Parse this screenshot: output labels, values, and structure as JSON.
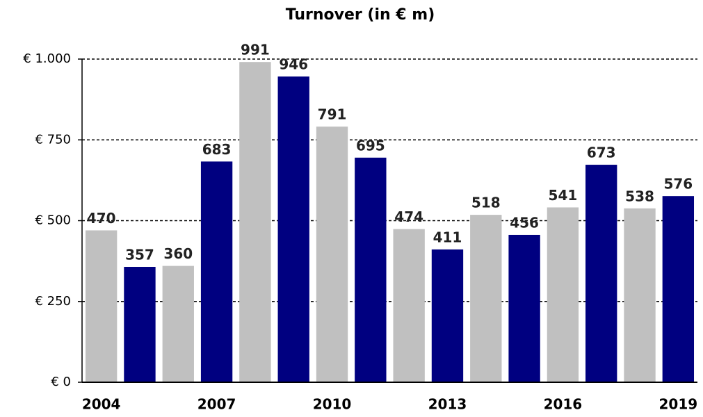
{
  "chart_data": {
    "type": "bar",
    "title": "Turnover (in € m)",
    "categories": [
      "2004",
      null,
      null,
      "2007",
      null,
      null,
      "2010",
      null,
      null,
      "2013",
      null,
      null,
      "2016",
      null,
      null,
      "2019"
    ],
    "series": [
      {
        "values": [
          470,
          357,
          360,
          683,
          991,
          946,
          791,
          695,
          474,
          411,
          518,
          456,
          541,
          673,
          538,
          576
        ],
        "colors": [
          "#c0c0c0",
          "#000080",
          "#c0c0c0",
          "#000080",
          "#c0c0c0",
          "#000080",
          "#c0c0c0",
          "#000080",
          "#c0c0c0",
          "#000080",
          "#c0c0c0",
          "#000080",
          "#c0c0c0",
          "#000080",
          "#c0c0c0",
          "#000080"
        ]
      }
    ],
    "ylim": [
      0,
      1000
    ],
    "yticks": [
      {
        "value": 0,
        "label": "€ 0"
      },
      {
        "value": 250,
        "label": "€ 250"
      },
      {
        "value": 500,
        "label": "€ 500"
      },
      {
        "value": 750,
        "label": "€ 750"
      },
      {
        "value": 1000,
        "label": "€ 1.000"
      }
    ],
    "grid": true
  }
}
